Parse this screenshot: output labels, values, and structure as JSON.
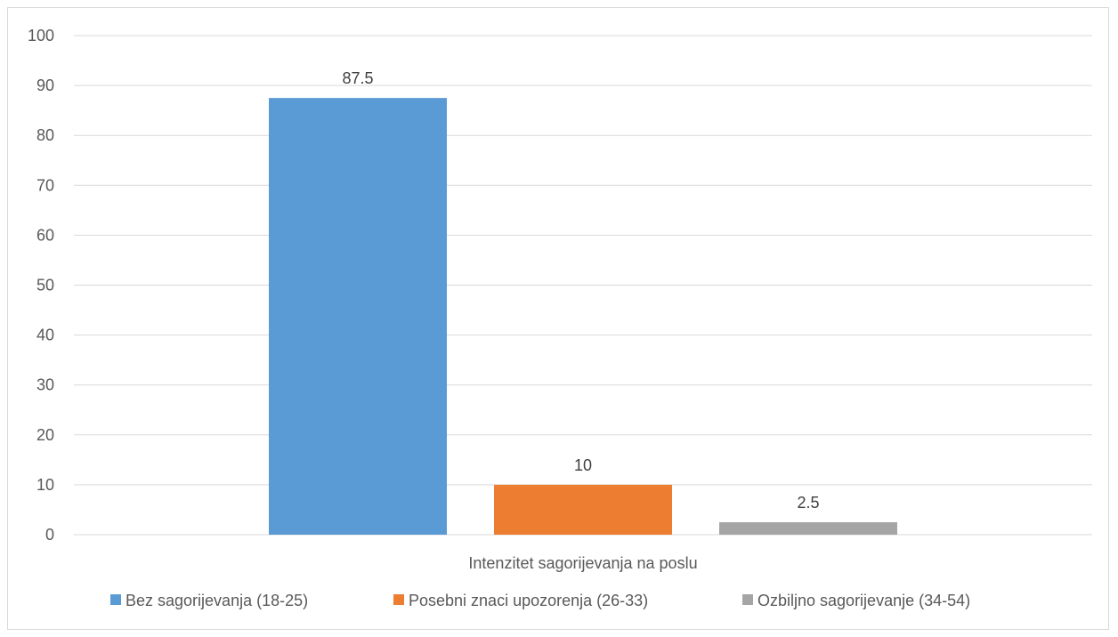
{
  "chart_data": {
    "type": "bar",
    "categories": [
      "Intenzitet sagorijevanja na poslu"
    ],
    "series": [
      {
        "name": "Bez sagorijevanja (18-25)",
        "values": [
          87.5
        ],
        "color": "#5b9bd5"
      },
      {
        "name": "Posebni znaci upozorenja (26-33)",
        "values": [
          10
        ],
        "color": "#ed7d31"
      },
      {
        "name": "Ozbiljno sagorijevanje (34-54)",
        "values": [
          2.5
        ],
        "color": "#a5a5a5"
      }
    ],
    "data_labels": [
      "87.5",
      "10",
      "2.5"
    ],
    "title": "",
    "xlabel": "Intenzitet sagorijevanja na poslu",
    "ylabel": "",
    "ylim": [
      0,
      100
    ],
    "yticks": [
      0,
      10,
      20,
      30,
      40,
      50,
      60,
      70,
      80,
      90,
      100
    ],
    "grid": true,
    "legend_position": "bottom",
    "gridline_color": "#d9d9d9"
  }
}
